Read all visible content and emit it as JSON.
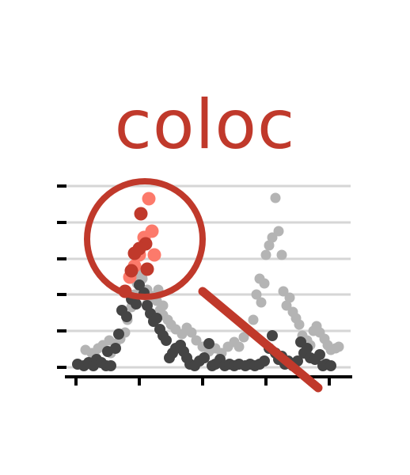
{
  "logo": {
    "title": "coloc"
  },
  "colors": {
    "title": "#c0392b",
    "magnifier": "#c0392b",
    "gridline": "#d6d6d6",
    "axis": "#000000",
    "dark_points": "#444444",
    "light_points": "#b4b4b4",
    "highlight_light": "#fc7a6b",
    "highlight_dark": "#c0392b"
  },
  "icons": {
    "magnifier": "magnifying-glass-icon",
    "plot": "scatter-plot-icon"
  }
}
